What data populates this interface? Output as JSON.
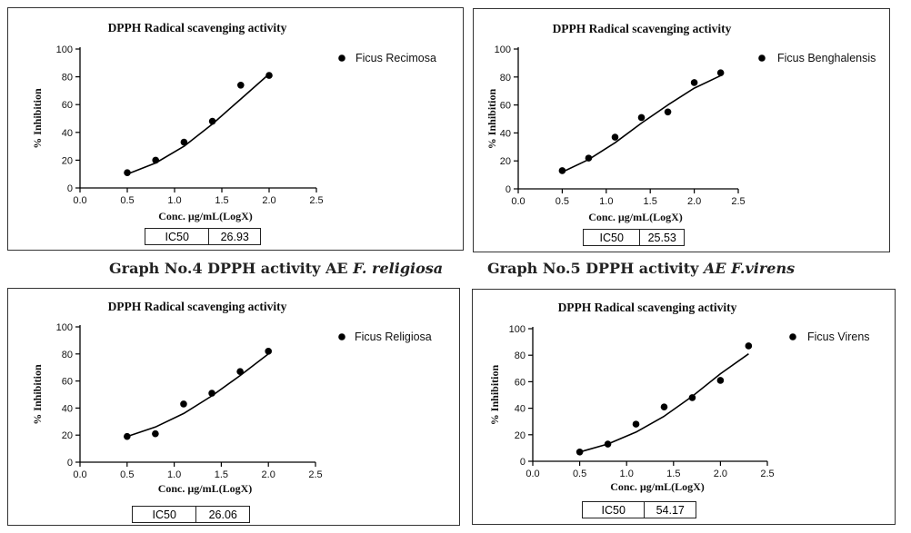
{
  "captions": [
    {
      "prefix": "Graph No.4 DPPH activity AE ",
      "species": "F. religiosa"
    },
    {
      "prefix": "Graph No.5 DPPH activity ",
      "species": "AE F.virens"
    }
  ],
  "chart_data": [
    {
      "type": "scatter",
      "title": "DPPH Radical scavenging activity",
      "xlabel": "Conc. µg/mL(LogX)",
      "ylabel": "% Inhibition",
      "xlim": [
        0,
        2.5
      ],
      "ylim": [
        0,
        100
      ],
      "xticks": [
        "0.0",
        "0.5",
        "1.0",
        "1.5",
        "2.0",
        "2.5"
      ],
      "yticks": [
        "0",
        "20",
        "40",
        "60",
        "80",
        "100"
      ],
      "legend_position": "top-right",
      "series": [
        {
          "name": "Ficus Recimosa",
          "points": [
            [
              0.5,
              11
            ],
            [
              0.8,
              20
            ],
            [
              1.1,
              33
            ],
            [
              1.4,
              48
            ],
            [
              1.7,
              74
            ],
            [
              2.0,
              81
            ]
          ],
          "fit": [
            [
              0.5,
              10
            ],
            [
              0.8,
              18
            ],
            [
              1.1,
              30
            ],
            [
              1.4,
              46
            ],
            [
              1.7,
              64
            ],
            [
              2.0,
              82
            ]
          ]
        }
      ],
      "ic50": {
        "label": "IC50",
        "value": "26.93"
      }
    },
    {
      "type": "scatter",
      "title": "DPPH Radical scavenging activity",
      "xlabel": "Conc. µg/mL(LogX)",
      "ylabel": "% Inhibition",
      "xlim": [
        0,
        2.5
      ],
      "ylim": [
        0,
        100
      ],
      "xticks": [
        "0.0",
        "0.5",
        "1.0",
        "1.5",
        "2.0",
        "2.5"
      ],
      "yticks": [
        "0",
        "20",
        "40",
        "60",
        "80",
        "100"
      ],
      "legend_position": "top-right",
      "series": [
        {
          "name": "Ficus Benghalensis",
          "points": [
            [
              0.5,
              13
            ],
            [
              0.8,
              22
            ],
            [
              1.1,
              37
            ],
            [
              1.4,
              51
            ],
            [
              1.7,
              55
            ],
            [
              2.0,
              76
            ],
            [
              2.3,
              83
            ]
          ],
          "fit": [
            [
              0.5,
              12
            ],
            [
              0.8,
              21
            ],
            [
              1.1,
              33
            ],
            [
              1.4,
              47
            ],
            [
              1.7,
              60
            ],
            [
              2.0,
              72
            ],
            [
              2.3,
              81
            ]
          ]
        }
      ],
      "ic50": {
        "label": "IC50",
        "value": "25.53"
      }
    },
    {
      "type": "scatter",
      "title": "DPPH Radical scavenging activity",
      "xlabel": "Conc. µg/mL(LogX)",
      "ylabel": "% Inhibition",
      "xlim": [
        0,
        2.5
      ],
      "ylim": [
        0,
        100
      ],
      "xticks": [
        "0.0",
        "0.5",
        "1.0",
        "1.5",
        "2.0",
        "2.5"
      ],
      "yticks": [
        "0",
        "20",
        "40",
        "60",
        "80",
        "100"
      ],
      "legend_position": "top-right",
      "series": [
        {
          "name": "Ficus Religiosa",
          "points": [
            [
              0.5,
              19
            ],
            [
              0.8,
              21
            ],
            [
              1.1,
              43
            ],
            [
              1.4,
              51
            ],
            [
              1.7,
              67
            ],
            [
              2.0,
              82
            ]
          ],
          "fit": [
            [
              0.5,
              19
            ],
            [
              0.8,
              26
            ],
            [
              1.1,
              36
            ],
            [
              1.4,
              49
            ],
            [
              1.7,
              64
            ],
            [
              2.0,
              80
            ]
          ]
        }
      ],
      "ic50": {
        "label": "IC50",
        "value": "26.06"
      }
    },
    {
      "type": "scatter",
      "title": "DPPH Radical scavenging activity",
      "xlabel": "Conc. µg/mL(LogX)",
      "ylabel": "% Inhibition",
      "xlim": [
        0,
        2.5
      ],
      "ylim": [
        0,
        100
      ],
      "xticks": [
        "0.0",
        "0.5",
        "1.0",
        "1.5",
        "2.0",
        "2.5"
      ],
      "yticks": [
        "0",
        "20",
        "40",
        "60",
        "80",
        "100"
      ],
      "legend_position": "top-right",
      "series": [
        {
          "name": "Ficus Virens",
          "points": [
            [
              0.5,
              7
            ],
            [
              0.8,
              13
            ],
            [
              1.1,
              28
            ],
            [
              1.4,
              41
            ],
            [
              1.7,
              48
            ],
            [
              2.0,
              61
            ],
            [
              2.3,
              87
            ]
          ],
          "fit": [
            [
              0.5,
              7
            ],
            [
              0.8,
              13
            ],
            [
              1.1,
              22
            ],
            [
              1.4,
              34
            ],
            [
              1.7,
              49
            ],
            [
              2.0,
              66
            ],
            [
              2.3,
              81
            ]
          ]
        }
      ],
      "ic50": {
        "label": "IC50",
        "value": "54.17"
      }
    }
  ]
}
